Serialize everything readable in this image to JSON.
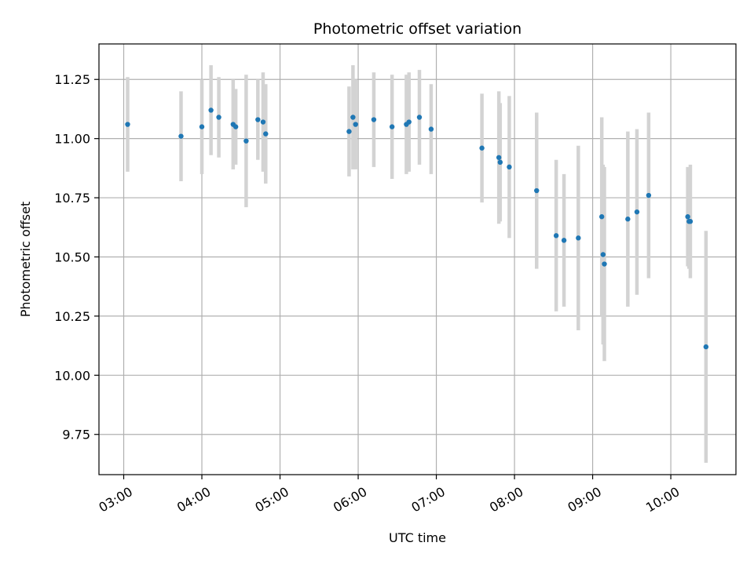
{
  "chart_data": {
    "type": "scatter",
    "title": "Photometric offset variation",
    "xlabel": "UTC time",
    "ylabel": "Photometric offset",
    "x_ticks": [
      "03:00",
      "04:00",
      "05:00",
      "06:00",
      "07:00",
      "08:00",
      "09:00",
      "10:00"
    ],
    "y_ticks": [
      "9.75",
      "10.00",
      "10.25",
      "10.50",
      "10.75",
      "11.00",
      "11.25"
    ],
    "xlim": [
      "02:41",
      "10:50"
    ],
    "ylim": [
      9.58,
      11.4
    ],
    "grid": true,
    "colors": {
      "marker": "#1f77b4",
      "errorbar": "#d3d3d3",
      "grid": "#b0b0b0"
    },
    "points": [
      {
        "x": "03:03",
        "y": 11.06,
        "yerr": 0.2
      },
      {
        "x": "03:44",
        "y": 11.01,
        "yerr": 0.19
      },
      {
        "x": "04:00",
        "y": 11.05,
        "yerr": 0.2
      },
      {
        "x": "04:07",
        "y": 11.12,
        "yerr": 0.19
      },
      {
        "x": "04:13",
        "y": 11.09,
        "yerr": 0.17
      },
      {
        "x": "04:24",
        "y": 11.06,
        "yerr": 0.19
      },
      {
        "x": "04:26",
        "y": 11.05,
        "yerr": 0.16
      },
      {
        "x": "04:34",
        "y": 10.99,
        "yerr": 0.28
      },
      {
        "x": "04:43",
        "y": 11.08,
        "yerr": 0.17
      },
      {
        "x": "04:47",
        "y": 11.07,
        "yerr": 0.21
      },
      {
        "x": "04:49",
        "y": 11.02,
        "yerr": 0.21
      },
      {
        "x": "05:53",
        "y": 11.03,
        "yerr": 0.19
      },
      {
        "x": "05:56",
        "y": 11.09,
        "yerr": 0.22
      },
      {
        "x": "05:58",
        "y": 11.06,
        "yerr": 0.19
      },
      {
        "x": "06:12",
        "y": 11.08,
        "yerr": 0.2
      },
      {
        "x": "06:26",
        "y": 11.05,
        "yerr": 0.22
      },
      {
        "x": "06:37",
        "y": 11.06,
        "yerr": 0.21
      },
      {
        "x": "06:39",
        "y": 11.07,
        "yerr": 0.21
      },
      {
        "x": "06:47",
        "y": 11.09,
        "yerr": 0.2
      },
      {
        "x": "06:56",
        "y": 11.04,
        "yerr": 0.19
      },
      {
        "x": "07:35",
        "y": 10.96,
        "yerr": 0.23
      },
      {
        "x": "07:48",
        "y": 10.92,
        "yerr": 0.28
      },
      {
        "x": "07:49",
        "y": 10.9,
        "yerr": 0.25
      },
      {
        "x": "07:56",
        "y": 10.88,
        "yerr": 0.3
      },
      {
        "x": "08:17",
        "y": 10.78,
        "yerr": 0.33
      },
      {
        "x": "08:32",
        "y": 10.59,
        "yerr": 0.32
      },
      {
        "x": "08:38",
        "y": 10.57,
        "yerr": 0.28
      },
      {
        "x": "08:49",
        "y": 10.58,
        "yerr": 0.39
      },
      {
        "x": "09:07",
        "y": 10.67,
        "yerr": 0.42
      },
      {
        "x": "09:08",
        "y": 10.51,
        "yerr": 0.38
      },
      {
        "x": "09:09",
        "y": 10.47,
        "yerr": 0.41
      },
      {
        "x": "09:27",
        "y": 10.66,
        "yerr": 0.37
      },
      {
        "x": "09:34",
        "y": 10.69,
        "yerr": 0.35
      },
      {
        "x": "09:43",
        "y": 10.76,
        "yerr": 0.35
      },
      {
        "x": "10:13",
        "y": 10.67,
        "yerr": 0.21
      },
      {
        "x": "10:14",
        "y": 10.65,
        "yerr": 0.2
      },
      {
        "x": "10:15",
        "y": 10.65,
        "yerr": 0.24
      },
      {
        "x": "10:27",
        "y": 10.12,
        "yerr": 0.49
      }
    ]
  }
}
